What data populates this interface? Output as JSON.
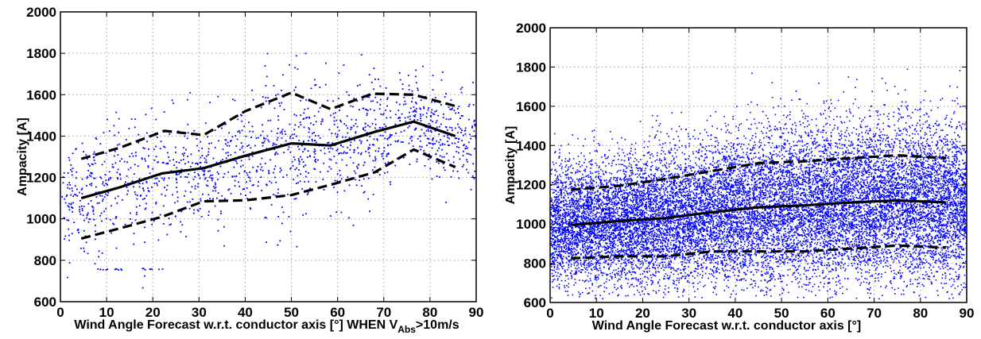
{
  "figure": {
    "colors": {
      "scatter": "#0000ff",
      "line": "#000000",
      "grid": "#999999"
    }
  },
  "chart_data": [
    {
      "type": "scatter",
      "xlabel": "Wind Angle Forecast w.r.t. conductor axis [°] WHEN V",
      "xlabel_subscript": "Abs",
      "xlabel_suffix": ">10m/s",
      "ylabel": "Ampacity [A]",
      "xlim": [
        0,
        90
      ],
      "ylim": [
        600,
        2000
      ],
      "xticks": [
        0,
        10,
        20,
        30,
        40,
        50,
        60,
        70,
        80,
        90
      ],
      "yticks": [
        600,
        800,
        1000,
        1200,
        1400,
        1600,
        1800,
        2000
      ],
      "grid": true,
      "scatter_density": "sparse",
      "median_line": {
        "x": [
          4.5,
          12.5,
          22,
          31,
          40,
          50,
          58.5,
          68,
          76.5,
          85.5
        ],
        "y": [
          1100,
          1150,
          1220,
          1245,
          1305,
          1365,
          1355,
          1420,
          1470,
          1400
        ]
      },
      "upper_bound": {
        "x": [
          4.5,
          13,
          22.5,
          31,
          40,
          50,
          58.5,
          67.5,
          76.5,
          85.5
        ],
        "y": [
          1290,
          1345,
          1425,
          1405,
          1520,
          1610,
          1530,
          1605,
          1600,
          1545
        ]
      },
      "lower_bound": {
        "x": [
          4.5,
          13,
          22,
          31,
          40,
          50,
          58.5,
          68,
          76.5,
          85.5
        ],
        "y": [
          905,
          955,
          1010,
          1085,
          1090,
          1115,
          1165,
          1225,
          1335,
          1250
        ]
      }
    },
    {
      "type": "scatter",
      "xlabel": "Wind Angle Forecast w.r.t. conductor axis [°]",
      "ylabel": "Ampacity [A]",
      "xlim": [
        0,
        90
      ],
      "ylim": [
        600,
        2000
      ],
      "xticks": [
        0,
        10,
        20,
        30,
        40,
        50,
        60,
        70,
        80,
        90
      ],
      "yticks": [
        600,
        800,
        1000,
        1200,
        1400,
        1600,
        1800,
        2000
      ],
      "grid": true,
      "scatter_density": "dense",
      "median_line": {
        "x": [
          4.5,
          15,
          25,
          35,
          45,
          55,
          65,
          75,
          85.5
        ],
        "y": [
          995,
          1015,
          1030,
          1060,
          1085,
          1095,
          1110,
          1120,
          1110
        ]
      },
      "upper_bound": {
        "x": [
          4.5,
          15,
          25,
          35,
          45,
          55,
          65,
          75,
          85.5
        ],
        "y": [
          1175,
          1195,
          1230,
          1270,
          1310,
          1320,
          1335,
          1350,
          1335
        ]
      },
      "lower_bound": {
        "x": [
          4.5,
          15,
          25,
          35,
          45,
          55,
          65,
          75,
          85.5
        ],
        "y": [
          825,
          835,
          835,
          860,
          860,
          860,
          875,
          890,
          880
        ]
      }
    }
  ]
}
